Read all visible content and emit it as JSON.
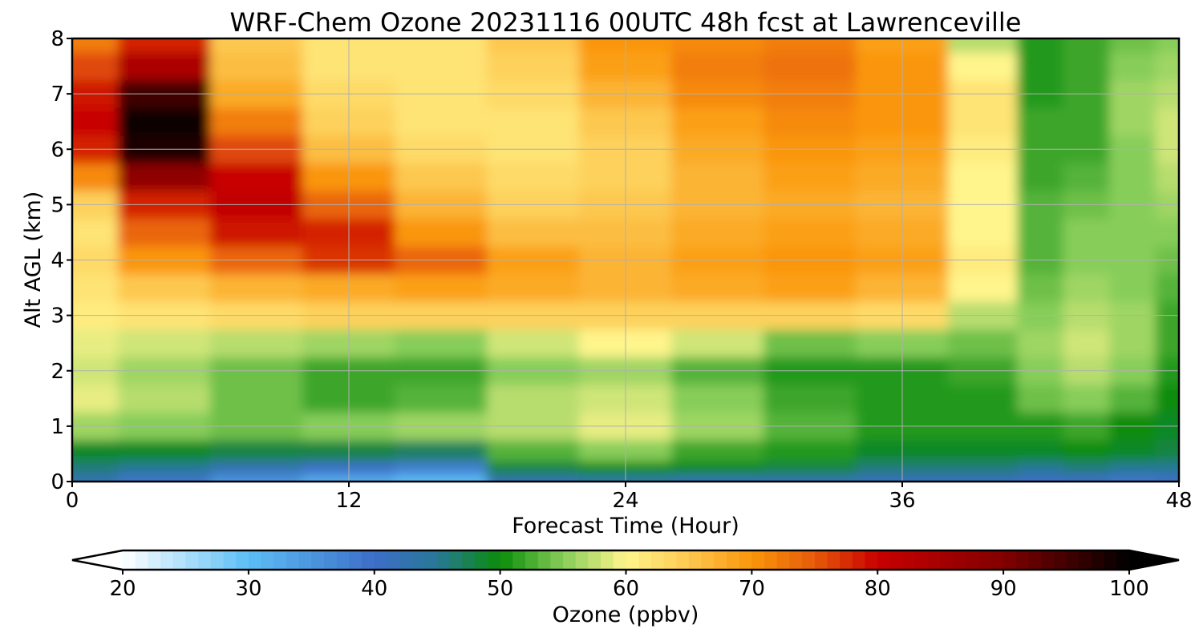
{
  "chart_data": {
    "type": "heatmap",
    "title": "WRF-Chem Ozone  20231116 00UTC 48h fcst at Lawrenceville",
    "xlabel": "Forecast Time (Hour)",
    "ylabel": "Alt AGL (km)",
    "xlim": [
      0,
      48
    ],
    "ylim": [
      0,
      8
    ],
    "x_ticks": [
      "0",
      "12",
      "24",
      "36",
      "48"
    ],
    "y_ticks": [
      "0",
      "1",
      "2",
      "3",
      "4",
      "5",
      "6",
      "7",
      "8"
    ],
    "grid": true,
    "colorbar": {
      "label": "Ozone  (ppbv)",
      "range": [
        20,
        100
      ],
      "ticks": [
        "20",
        "30",
        "40",
        "50",
        "60",
        "70",
        "80",
        "90",
        "100"
      ],
      "extend": "both",
      "orientation": "horizontal",
      "placement": "bottom"
    },
    "x": [
      0,
      4,
      8,
      12,
      16,
      20,
      24,
      28,
      32,
      36,
      40,
      42,
      44,
      46,
      48
    ],
    "y": [
      0,
      0.25,
      0.5,
      1,
      1.5,
      2,
      2.5,
      3,
      3.5,
      4,
      4.5,
      5,
      5.5,
      6,
      6.5,
      7,
      7.5,
      8
    ],
    "values": [
      [
        42,
        39,
        35,
        32,
        30,
        42,
        43,
        42,
        42,
        41,
        41,
        40,
        40,
        39,
        40
      ],
      [
        46,
        45,
        42,
        40,
        38,
        48,
        50,
        49,
        48,
        46,
        46,
        45,
        46,
        45,
        45
      ],
      [
        49,
        49,
        48,
        48,
        47,
        53,
        55,
        52,
        51,
        49,
        49,
        49,
        50,
        49,
        48
      ],
      [
        56,
        55,
        54,
        55,
        56,
        57,
        59,
        56,
        53,
        51,
        51,
        51,
        52,
        50,
        49
      ],
      [
        59,
        57,
        54,
        52,
        53,
        57,
        58,
        55,
        52,
        51,
        51,
        54,
        55,
        53,
        50
      ],
      [
        58,
        56,
        54,
        52,
        52,
        55,
        56,
        53,
        51,
        51,
        52,
        55,
        57,
        55,
        51
      ],
      [
        59,
        58,
        57,
        56,
        55,
        58,
        60,
        58,
        54,
        55,
        54,
        56,
        58,
        56,
        52
      ],
      [
        61,
        62,
        63,
        64,
        64,
        64,
        64,
        64,
        64,
        63,
        57,
        55,
        57,
        56,
        52
      ],
      [
        62,
        65,
        67,
        68,
        69,
        68,
        67,
        68,
        69,
        67,
        60,
        54,
        56,
        55,
        53
      ],
      [
        63,
        70,
        74,
        77,
        74,
        69,
        67,
        69,
        70,
        69,
        61,
        53,
        55,
        55,
        54
      ],
      [
        62,
        74,
        79,
        78,
        70,
        66,
        66,
        68,
        69,
        68,
        60,
        53,
        55,
        55,
        55
      ],
      [
        64,
        78,
        81,
        74,
        67,
        64,
        65,
        67,
        68,
        67,
        60,
        53,
        54,
        55,
        56
      ],
      [
        71,
        88,
        80,
        70,
        65,
        63,
        64,
        67,
        69,
        68,
        60,
        52,
        53,
        55,
        57
      ],
      [
        78,
        98,
        76,
        66,
        63,
        62,
        64,
        68,
        70,
        69,
        61,
        52,
        52,
        55,
        58
      ],
      [
        80,
        99,
        72,
        64,
        62,
        62,
        65,
        69,
        71,
        70,
        62,
        52,
        52,
        56,
        58
      ],
      [
        79,
        95,
        68,
        63,
        62,
        63,
        67,
        71,
        72,
        70,
        62,
        51,
        52,
        56,
        57
      ],
      [
        76,
        84,
        66,
        62,
        62,
        64,
        69,
        72,
        73,
        70,
        60,
        51,
        52,
        55,
        56
      ],
      [
        72,
        78,
        65,
        62,
        62,
        65,
        70,
        71,
        72,
        69,
        57,
        51,
        52,
        54,
        55
      ]
    ]
  }
}
